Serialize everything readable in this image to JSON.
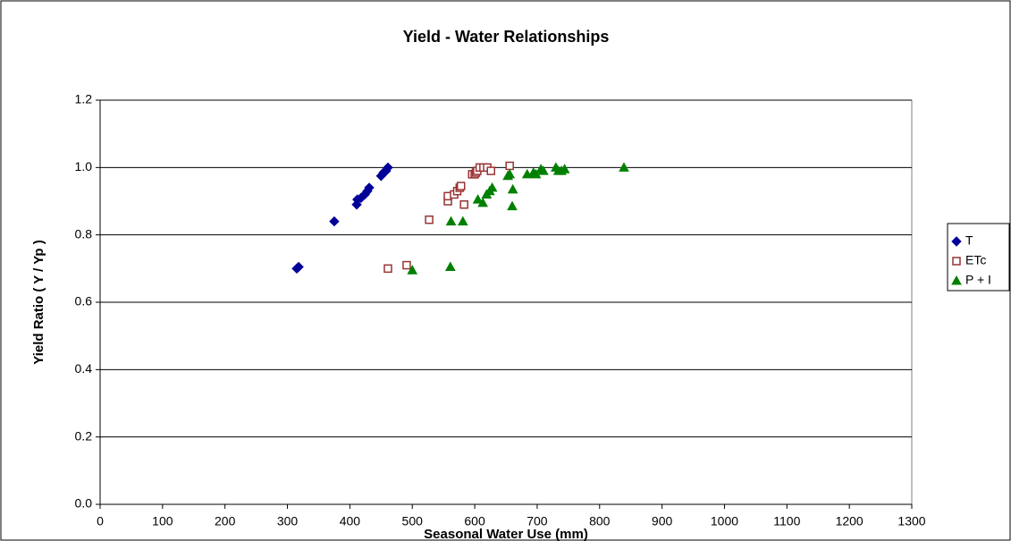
{
  "chart_data": {
    "type": "scatter",
    "title": "Yield - Water Relationships",
    "x_label": "Seasonal Water Use (mm)",
    "y_label": "Yield Ratio ( Y / Yp )",
    "xlim": [
      0,
      1300
    ],
    "xticks": [
      0,
      100,
      200,
      300,
      400,
      500,
      600,
      700,
      800,
      900,
      1000,
      1100,
      1200,
      1300
    ],
    "ylim": [
      0,
      1.2
    ],
    "yticks": [
      {
        "value": 0,
        "label": "0.0"
      },
      0.2,
      0.4,
      0.6,
      0.8,
      {
        "value": 1,
        "label": "1.0"
      },
      1.2
    ],
    "grid": true,
    "legend": "right",
    "series": [
      {
        "name": "T",
        "color": "#000099",
        "marker": "diamond",
        "x": [
          315,
          318,
          375,
          411,
          412,
          418,
          424,
          428,
          431,
          450,
          454,
          458,
          461
        ],
        "values": [
          0.7,
          0.705,
          0.84,
          0.89,
          0.905,
          0.91,
          0.92,
          0.93,
          0.94,
          0.975,
          0.985,
          0.99,
          1.0
        ]
      },
      {
        "name": "ETc",
        "color": "#993333",
        "marker": "square",
        "x": [
          461,
          491,
          527,
          557,
          557,
          567,
          572,
          576,
          578,
          583,
          596,
          600,
          602,
          604,
          608,
          614,
          620,
          626,
          656
        ],
        "values": [
          0.7,
          0.71,
          0.845,
          0.9,
          0.915,
          0.92,
          0.93,
          0.94,
          0.945,
          0.89,
          0.98,
          0.98,
          0.985,
          0.99,
          1.0,
          1.0,
          1.0,
          0.99,
          1.005
        ]
      },
      {
        "name": "P + I",
        "color": "#008000",
        "marker": "triangle",
        "x": [
          500,
          561,
          562,
          581,
          605,
          613,
          619,
          624,
          628,
          653,
          656,
          660,
          661,
          684,
          694,
          698,
          706,
          710,
          730,
          734,
          739,
          744,
          839
        ],
        "values": [
          0.695,
          0.705,
          0.84,
          0.84,
          0.905,
          0.895,
          0.92,
          0.93,
          0.94,
          0.975,
          0.98,
          0.885,
          0.935,
          0.98,
          0.985,
          0.98,
          0.995,
          0.99,
          1.0,
          0.99,
          0.99,
          0.995,
          1.0
        ]
      }
    ]
  }
}
